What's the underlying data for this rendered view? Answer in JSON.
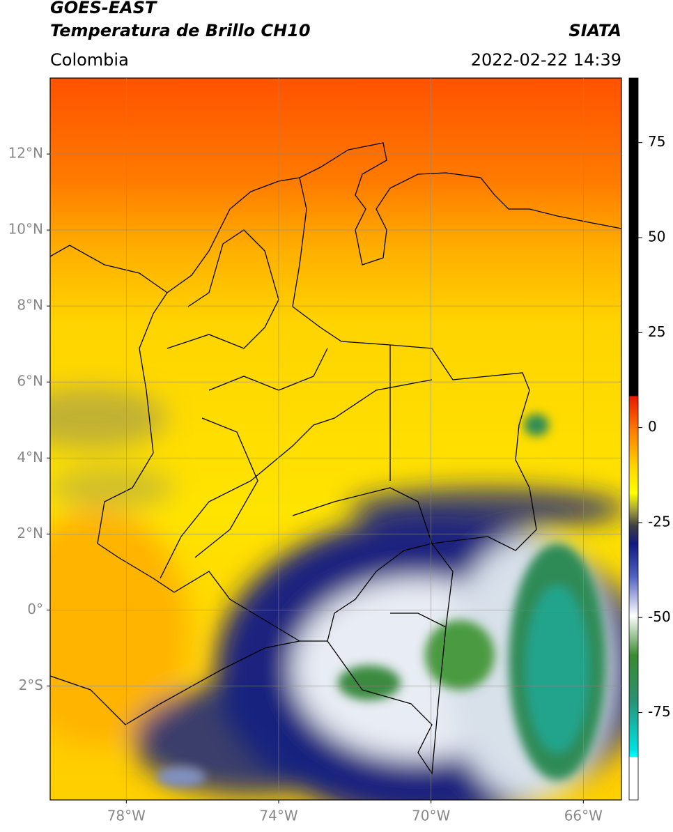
{
  "header": {
    "title_line1": "GOES-EAST",
    "title_line2": "Temperatura de Brillo CH10",
    "region": "Colombia",
    "source": "SIATA",
    "datetime": "2022-02-22 14:39"
  },
  "map": {
    "lonlim": [
      -80,
      -65
    ],
    "latlim": [
      -5,
      14
    ],
    "lon_ticks": [
      {
        "value": -78,
        "label": "78°W"
      },
      {
        "value": -74,
        "label": "74°W"
      },
      {
        "value": -70,
        "label": "70°W"
      },
      {
        "value": -66,
        "label": "66°W"
      }
    ],
    "lat_ticks": [
      {
        "value": 12,
        "label": "12°N"
      },
      {
        "value": 10,
        "label": "10°N"
      },
      {
        "value": 8,
        "label": "8°N"
      },
      {
        "value": 6,
        "label": "6°N"
      },
      {
        "value": 4,
        "label": "4°N"
      },
      {
        "value": 2,
        "label": "2°N"
      },
      {
        "value": 0,
        "label": "0°"
      },
      {
        "value": -2,
        "label": "2°S"
      }
    ]
  },
  "colorbar": {
    "lim": [
      -98,
      92
    ],
    "ticks": [
      75,
      50,
      25,
      0,
      -25,
      -50,
      -75
    ]
  }
}
